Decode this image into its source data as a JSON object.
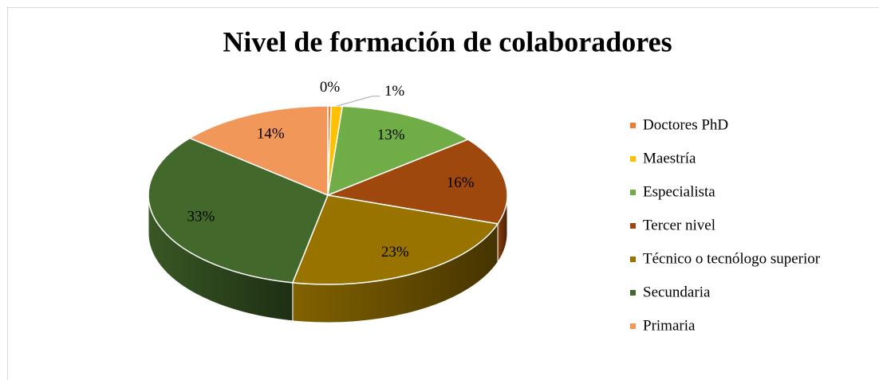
{
  "chart_data": {
    "type": "pie3d",
    "title": "Nivel de formación de colaboradores",
    "categories": [
      "Doctores PhD",
      "Maestría",
      "Especialista",
      "Tercer nivel",
      "Técnico o tecnólogo superior",
      "Secundaria",
      "Primaria"
    ],
    "values": [
      0.3,
      1,
      13,
      16,
      23,
      33,
      14
    ],
    "value_labels": [
      "0%",
      "1%",
      "13%",
      "16%",
      "23%",
      "33%",
      "14%"
    ],
    "colors": [
      "#ED7D31",
      "#FFC000",
      "#70AD47",
      "#9E480E",
      "#997300",
      "#43682B",
      "#F1975A"
    ],
    "legend": "right"
  }
}
